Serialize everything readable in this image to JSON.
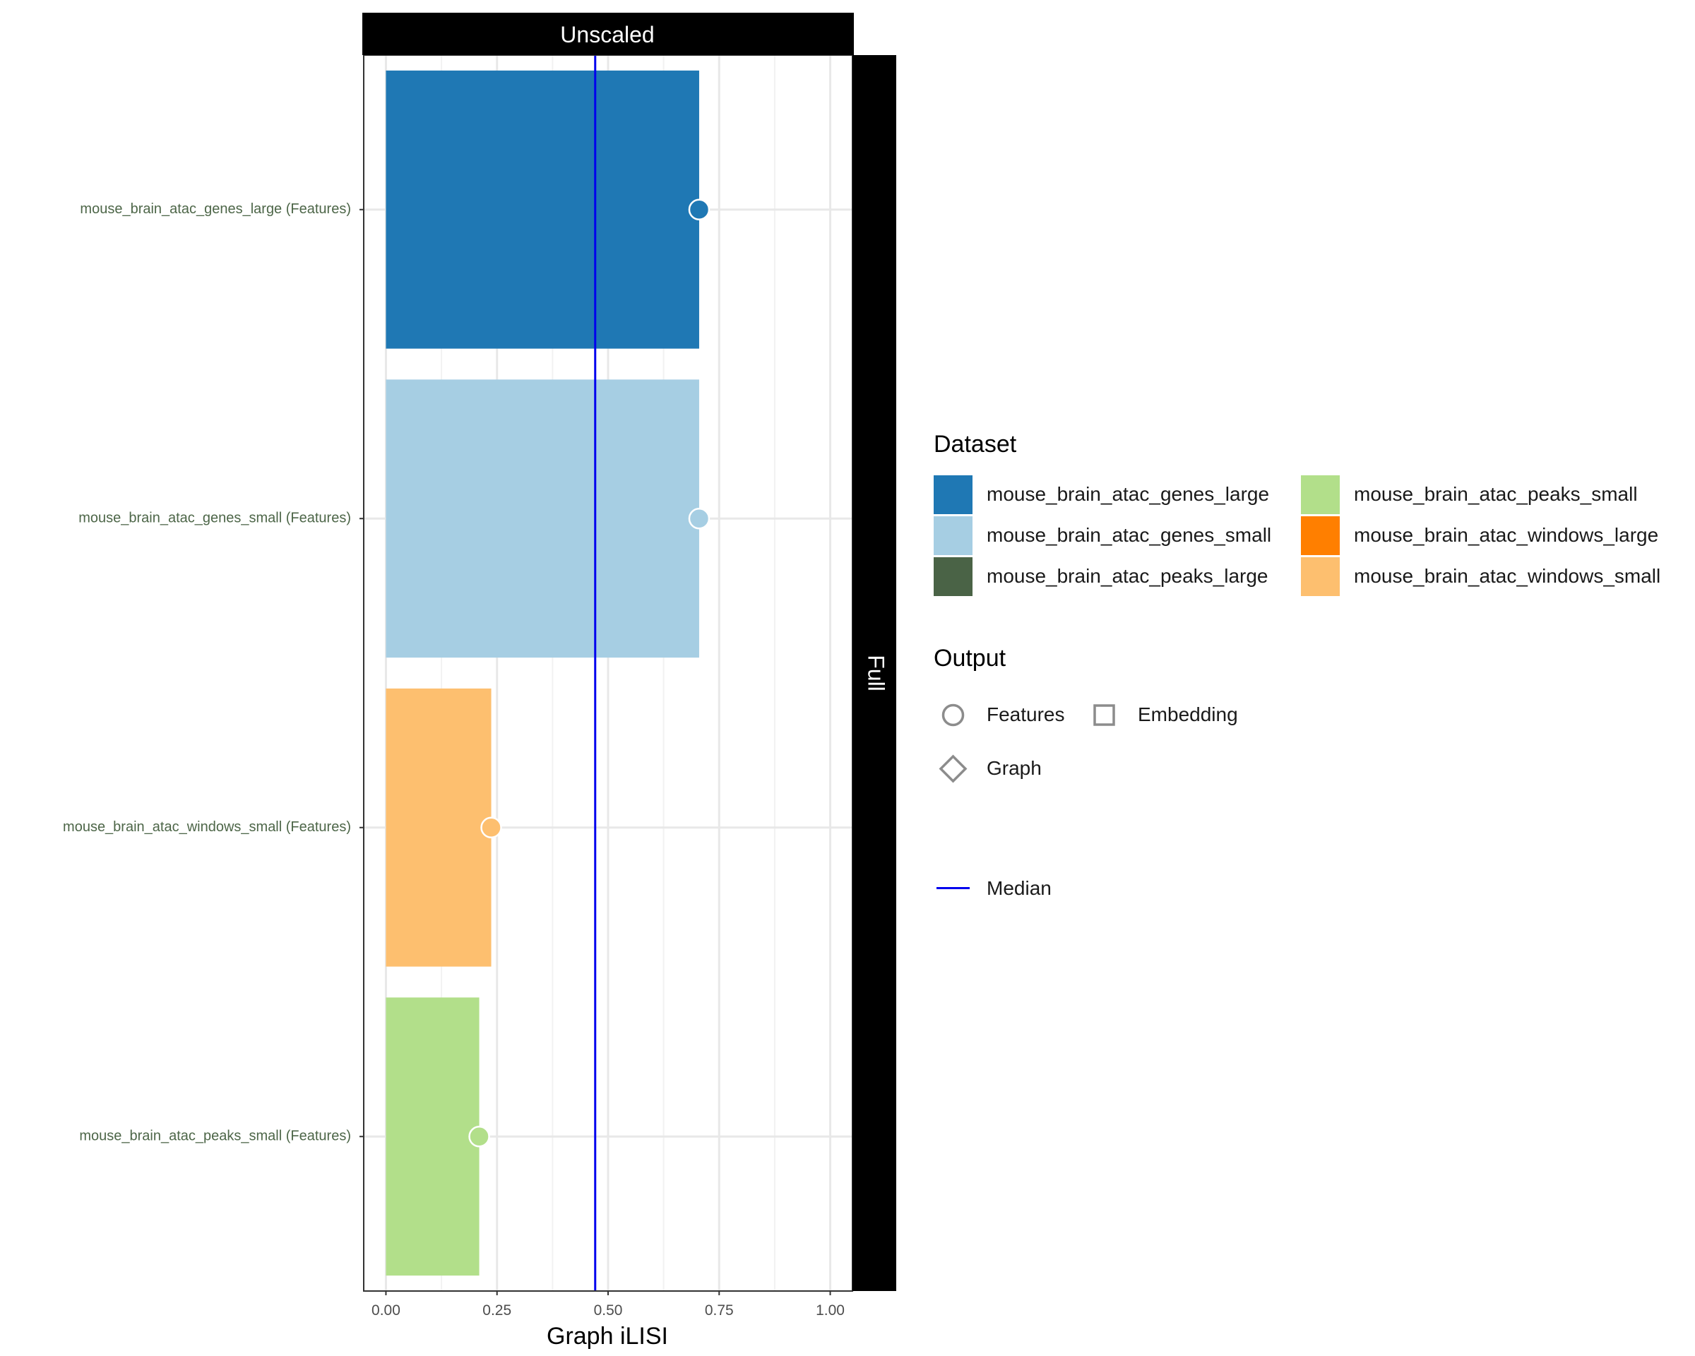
{
  "chart_data": {
    "type": "bar",
    "facet_top": "Unscaled",
    "facet_right": "Full",
    "xlabel": "Graph iLISI",
    "ylabel": "",
    "xlim": [
      -0.05,
      1.05
    ],
    "x_ticks": [
      0.0,
      0.25,
      0.5,
      0.75,
      1.0
    ],
    "x_tick_labels": [
      "0.00",
      "0.25",
      "0.50",
      "0.75",
      "1.00"
    ],
    "categories": [
      "mouse_brain_atac_genes_large (Features)",
      "mouse_brain_atac_genes_small (Features)",
      "mouse_brain_atac_windows_small (Features)",
      "mouse_brain_atac_peaks_small (Features)"
    ],
    "values": [
      0.705,
      0.705,
      0.237,
      0.21
    ],
    "bar_datasets": [
      "mouse_brain_atac_genes_large",
      "mouse_brain_atac_genes_small",
      "mouse_brain_atac_windows_small",
      "mouse_brain_atac_peaks_small"
    ],
    "median": 0.471,
    "grid": true,
    "legend_position": "right",
    "legend": {
      "dataset_title": "Dataset",
      "datasets": [
        {
          "name": "mouse_brain_atac_genes_large",
          "color": "#1f78b4"
        },
        {
          "name": "mouse_brain_atac_genes_small",
          "color": "#a6cee3"
        },
        {
          "name": "mouse_brain_atac_peaks_large",
          "color": "#4a6346"
        },
        {
          "name": "mouse_brain_atac_peaks_small",
          "color": "#b2df8a"
        },
        {
          "name": "mouse_brain_atac_windows_large",
          "color": "#ff7f00"
        },
        {
          "name": "mouse_brain_atac_windows_small",
          "color": "#fdbf6f"
        }
      ],
      "output_title": "Output",
      "outputs": [
        {
          "name": "Features",
          "icon": "circle-icon"
        },
        {
          "name": "Embedding",
          "icon": "square-icon"
        },
        {
          "name": "Graph",
          "icon": "diamond-icon"
        }
      ],
      "median_label": "Median",
      "median_color": "#0000ee"
    }
  }
}
